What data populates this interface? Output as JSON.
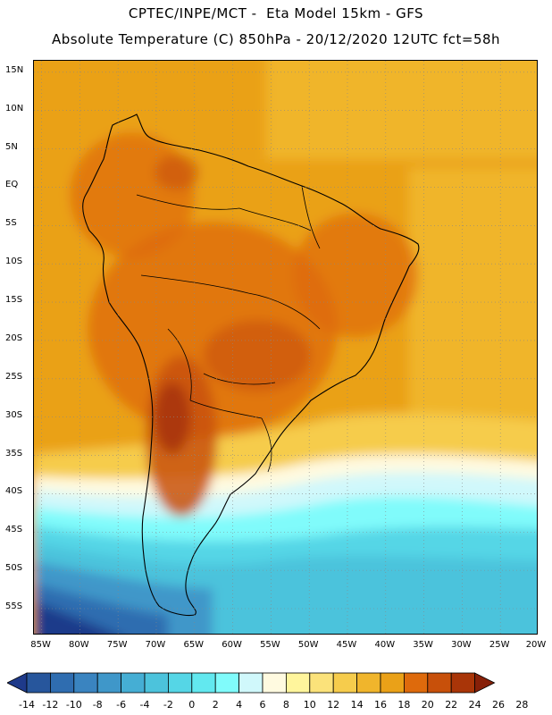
{
  "header": {
    "line1": "CPTEC/INPE/MCT -  Eta Model 15km - GFS",
    "line2": "Absolute Temperature (C) 850hPa - 20/12/2020 12UTC fct=58h"
  },
  "map": {
    "lat_labels": [
      "15N",
      "10N",
      "5N",
      "EQ",
      "5S",
      "10S",
      "15S",
      "20S",
      "25S",
      "30S",
      "35S",
      "40S",
      "45S",
      "50S",
      "55S"
    ],
    "lon_labels": [
      "85W",
      "80W",
      "75W",
      "70W",
      "65W",
      "60W",
      "55W",
      "50W",
      "45W",
      "40W",
      "35W",
      "30W",
      "25W",
      "20W"
    ],
    "lat_range": [
      16.5,
      -58.5
    ],
    "lon_range": [
      -86,
      -20
    ],
    "variable": "Absolute Temperature (C) at 850hPa"
  },
  "colorbar": {
    "labels": [
      "-14",
      "-12",
      "-10",
      "-8",
      "-6",
      "-4",
      "-2",
      "0",
      "2",
      "4",
      "6",
      "8",
      "10",
      "12",
      "14",
      "16",
      "18",
      "20",
      "22",
      "24",
      "26",
      "28"
    ],
    "colors": [
      "#1e3a8a",
      "#27569c",
      "#2f6db0",
      "#3a84c0",
      "#3f97c9",
      "#45aed4",
      "#4cc3dc",
      "#55d6e6",
      "#62e8ef",
      "#80fbfb",
      "#d0f8fb",
      "#fffae0",
      "#fff59c",
      "#fbe27a",
      "#f6cc4c",
      "#f0b52c",
      "#eaa118",
      "#de6a0c",
      "#c8500a",
      "#a93508",
      "#872008"
    ]
  }
}
